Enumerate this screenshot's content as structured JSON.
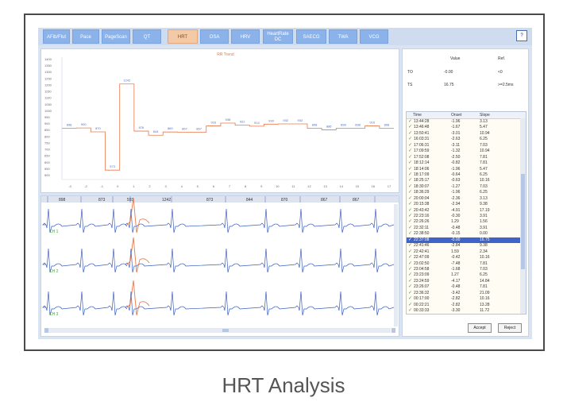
{
  "tabs": [
    {
      "label": "AFib/Flut",
      "active": false
    },
    {
      "label": "Pace",
      "active": false
    },
    {
      "label": "PageScan",
      "active": false
    },
    {
      "label": "QT",
      "active": false
    },
    {
      "label": "HRT",
      "active": true
    },
    {
      "label": "OSA",
      "active": false
    },
    {
      "label": "HRV",
      "active": false
    },
    {
      "label": "HeartRate DC",
      "active": false
    },
    {
      "label": "SAECG",
      "active": false
    },
    {
      "label": "TWA",
      "active": false
    },
    {
      "label": "VCG",
      "active": false
    }
  ],
  "help_icon": "help-icon",
  "chart_data": {
    "type": "line",
    "title": "RR Trend",
    "x": [
      -5,
      -4,
      -3,
      -2,
      -1,
      0,
      1,
      2,
      3,
      4,
      5,
      6,
      7,
      8,
      9,
      10,
      11,
      12,
      13,
      14,
      15,
      16,
      17
    ],
    "values": [
      898,
      900,
      870,
      573,
      1242,
      876,
      844,
      869,
      867,
      867,
      916,
      938,
      922,
      914,
      930,
      932,
      932,
      898,
      886,
      898,
      898,
      916,
      898
    ],
    "point_labels": [
      "898",
      "900",
      "870",
      "573",
      "1242",
      "876",
      "844",
      "869",
      "867",
      "867",
      "916",
      "938",
      "922",
      "914",
      "930",
      "932",
      "932",
      "898",
      "886",
      "898",
      "898",
      "916",
      "898"
    ],
    "xtick_labels": [
      "-3",
      "-2",
      "-1",
      "0",
      "1",
      "2",
      "3",
      "4",
      "5",
      "6",
      "7",
      "8",
      "9",
      "10",
      "11",
      "12",
      "13",
      "14",
      "15",
      "16",
      "17"
    ],
    "ytick_labels": [
      "1400",
      "1350",
      "1300",
      "1250",
      "1200",
      "1150",
      "1100",
      "1050",
      "1000",
      "950",
      "900",
      "850",
      "800",
      "750",
      "700",
      "650",
      "600",
      "550",
      "500"
    ],
    "ylim": [
      500,
      1450
    ],
    "color": "#e8784a"
  },
  "ecg": {
    "rr_labels": [
      "898",
      "873",
      "593",
      "1242",
      "873",
      "844",
      "870",
      "867",
      "867"
    ],
    "channels": [
      "CH 1",
      "CH 2",
      "CH 3"
    ]
  },
  "stats": {
    "header_value": "Value",
    "header_ref": "Ref.",
    "rows": [
      {
        "label": "TO",
        "value": "-0.00",
        "ref": "<0"
      },
      {
        "label": "TS",
        "value": "16.75",
        "ref": ">=2.5ms"
      }
    ]
  },
  "list": {
    "headers": [
      "Time",
      "Onset",
      "Slope"
    ],
    "rows": [
      [
        "13:44:28",
        "-1.96",
        "3.13"
      ],
      [
        "13:46:48",
        "-1.67",
        "5.47"
      ],
      [
        "13:50:41",
        "-3.01",
        "10.94"
      ],
      [
        "16:03:31",
        "-2.63",
        "6.25"
      ],
      [
        "17:06:31",
        "-3.11",
        "7.03"
      ],
      [
        "17:09:59",
        "-1.32",
        "10.94"
      ],
      [
        "17:52:08",
        "-2.50",
        "7.81"
      ],
      [
        "18:12:14",
        "-0.82",
        "7.81"
      ],
      [
        "18:14:06",
        "-1.96",
        "5.47"
      ],
      [
        "18:17:09",
        "-0.64",
        "6.25"
      ],
      [
        "18:25:17",
        "-0.63",
        "10.16"
      ],
      [
        "18:30:07",
        "-1.27",
        "7.03"
      ],
      [
        "18:36:29",
        "-1.96",
        "6.25"
      ],
      [
        "20:00:04",
        "-2.36",
        "3.13"
      ],
      [
        "20:15:38",
        "-2.94",
        "9.38"
      ],
      [
        "20:43:42",
        "-4.91",
        "17.19"
      ],
      [
        "22:23:16",
        "-0.30",
        "3.91"
      ],
      [
        "22:26:26",
        "1.29",
        "1.56"
      ],
      [
        "22:32:11",
        "-0.48",
        "3.91"
      ],
      [
        "22:38:50",
        "-0.15",
        "0.00"
      ],
      [
        "22:37:08",
        "-0.00",
        "16.75"
      ],
      [
        "22:41:46",
        "-2.84",
        "9.38"
      ],
      [
        "22:42:41",
        "1.59",
        "2.34"
      ],
      [
        "22:47:09",
        "-0.42",
        "10.16"
      ],
      [
        "23:02:50",
        "-7.48",
        "7.81"
      ],
      [
        "23:04:58",
        "-1.68",
        "7.03"
      ],
      [
        "23:23:09",
        "1.27",
        "6.25"
      ],
      [
        "23:24:59",
        "-4.17",
        "14.84"
      ],
      [
        "23:26:07",
        "-0.48",
        "7.81"
      ],
      [
        "23:36:32",
        "-3.42",
        "21.09"
      ],
      [
        "00:17:00",
        "-2.82",
        "10.16"
      ],
      [
        "00:22:21",
        "-2.82",
        "13.28"
      ],
      [
        "00:33:33",
        "-3.30",
        "11.72"
      ]
    ],
    "selected_index": 20
  },
  "buttons": {
    "accept": "Accept",
    "reject": "Reject"
  },
  "caption": "HRT Analysis"
}
